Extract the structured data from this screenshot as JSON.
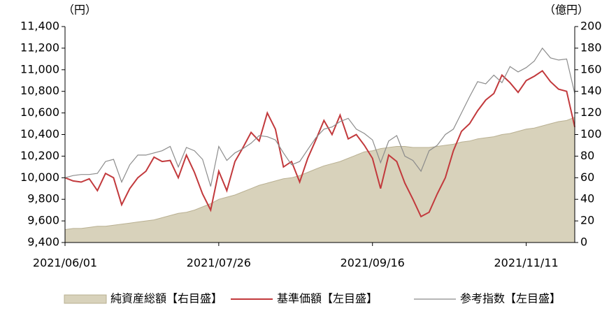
{
  "chart_data": {
    "type": "line",
    "y_label": "（円）",
    "y2_label": "（億円）",
    "categories": [
      "2021/06/01",
      null,
      null,
      null,
      null,
      null,
      null,
      null,
      null,
      null,
      null,
      null,
      null,
      null,
      null,
      null,
      null,
      null,
      null,
      "2021/07/26",
      null,
      null,
      null,
      null,
      null,
      null,
      null,
      null,
      null,
      null,
      null,
      null,
      null,
      null,
      null,
      null,
      null,
      null,
      "2021/09/16",
      null,
      null,
      null,
      null,
      null,
      null,
      null,
      null,
      null,
      null,
      null,
      null,
      null,
      null,
      null,
      null,
      null,
      null,
      "2021/11/11",
      null,
      null,
      null,
      null,
      null,
      null
    ],
    "series": [
      {
        "name": "純資産総額【右目盛】",
        "type": "area",
        "axis": "y2",
        "color": "#d8d2bb",
        "values": [
          12,
          13,
          13,
          14,
          15,
          15,
          16,
          17,
          18,
          19,
          20,
          21,
          23,
          25,
          27,
          28,
          30,
          33,
          36,
          40,
          42,
          44,
          47,
          50,
          53,
          55,
          57,
          59,
          60,
          62,
          65,
          68,
          71,
          73,
          75,
          78,
          81,
          84,
          85,
          87,
          88,
          89,
          89,
          88,
          88,
          88,
          89,
          90,
          91,
          93,
          94,
          96,
          97,
          98,
          100,
          101,
          103,
          105,
          106,
          108,
          110,
          112,
          113,
          116
        ]
      },
      {
        "name": "基準価額【左目盛】",
        "type": "line",
        "color": "#c2393c",
        "values": [
          10000,
          9970,
          9960,
          9990,
          9880,
          10040,
          10000,
          9750,
          9900,
          10000,
          10060,
          10190,
          10150,
          10160,
          10000,
          10210,
          10050,
          9850,
          9700,
          10060,
          9880,
          10150,
          10280,
          10420,
          10340,
          10600,
          10450,
          10100,
          10150,
          9960,
          10180,
          10350,
          10530,
          10400,
          10580,
          10360,
          10400,
          10300,
          10180,
          9900,
          10210,
          10150,
          9950,
          9800,
          9640,
          9680,
          9850,
          10000,
          10250,
          10430,
          10500,
          10620,
          10720,
          10780,
          10950,
          10880,
          10790,
          10900,
          10940,
          10990,
          10890,
          10820,
          10800,
          10470
        ]
      },
      {
        "name": "参考指数【左目盛】",
        "type": "line",
        "color": "#8c8c8c",
        "values": [
          10000,
          10020,
          10030,
          10030,
          10040,
          10150,
          10170,
          9960,
          10120,
          10210,
          10210,
          10230,
          10250,
          10290,
          10100,
          10280,
          10250,
          10170,
          9920,
          10290,
          10160,
          10230,
          10270,
          10320,
          10390,
          10380,
          10350,
          10230,
          10120,
          10150,
          10260,
          10370,
          10450,
          10470,
          10520,
          10550,
          10450,
          10410,
          10350,
          10140,
          10340,
          10390,
          10200,
          10160,
          10060,
          10250,
          10300,
          10400,
          10450,
          10600,
          10750,
          10890,
          10870,
          10950,
          10880,
          11030,
          10980,
          11020,
          11080,
          11200,
          11110,
          11090,
          11100,
          10780
        ]
      }
    ],
    "ylim": [
      9400,
      11400
    ],
    "yticks": [
      {
        "value": 9400,
        "label": "9,400"
      },
      {
        "value": 9600,
        "label": "9,600"
      },
      {
        "value": 9800,
        "label": "9,800"
      },
      {
        "value": 10000,
        "label": "10,000"
      },
      {
        "value": 10200,
        "label": "10,200"
      },
      {
        "value": 10400,
        "label": "10,400"
      },
      {
        "value": 10600,
        "label": "10,600"
      },
      {
        "value": 10800,
        "label": "10,800"
      },
      {
        "value": 11000,
        "label": "11,000"
      },
      {
        "value": 11200,
        "label": "11,200"
      },
      {
        "value": 11400,
        "label": "11,400"
      }
    ],
    "y2lim": [
      0,
      200
    ],
    "y2ticks": [
      0,
      20,
      40,
      60,
      80,
      100,
      120,
      140,
      160,
      180,
      200
    ]
  }
}
